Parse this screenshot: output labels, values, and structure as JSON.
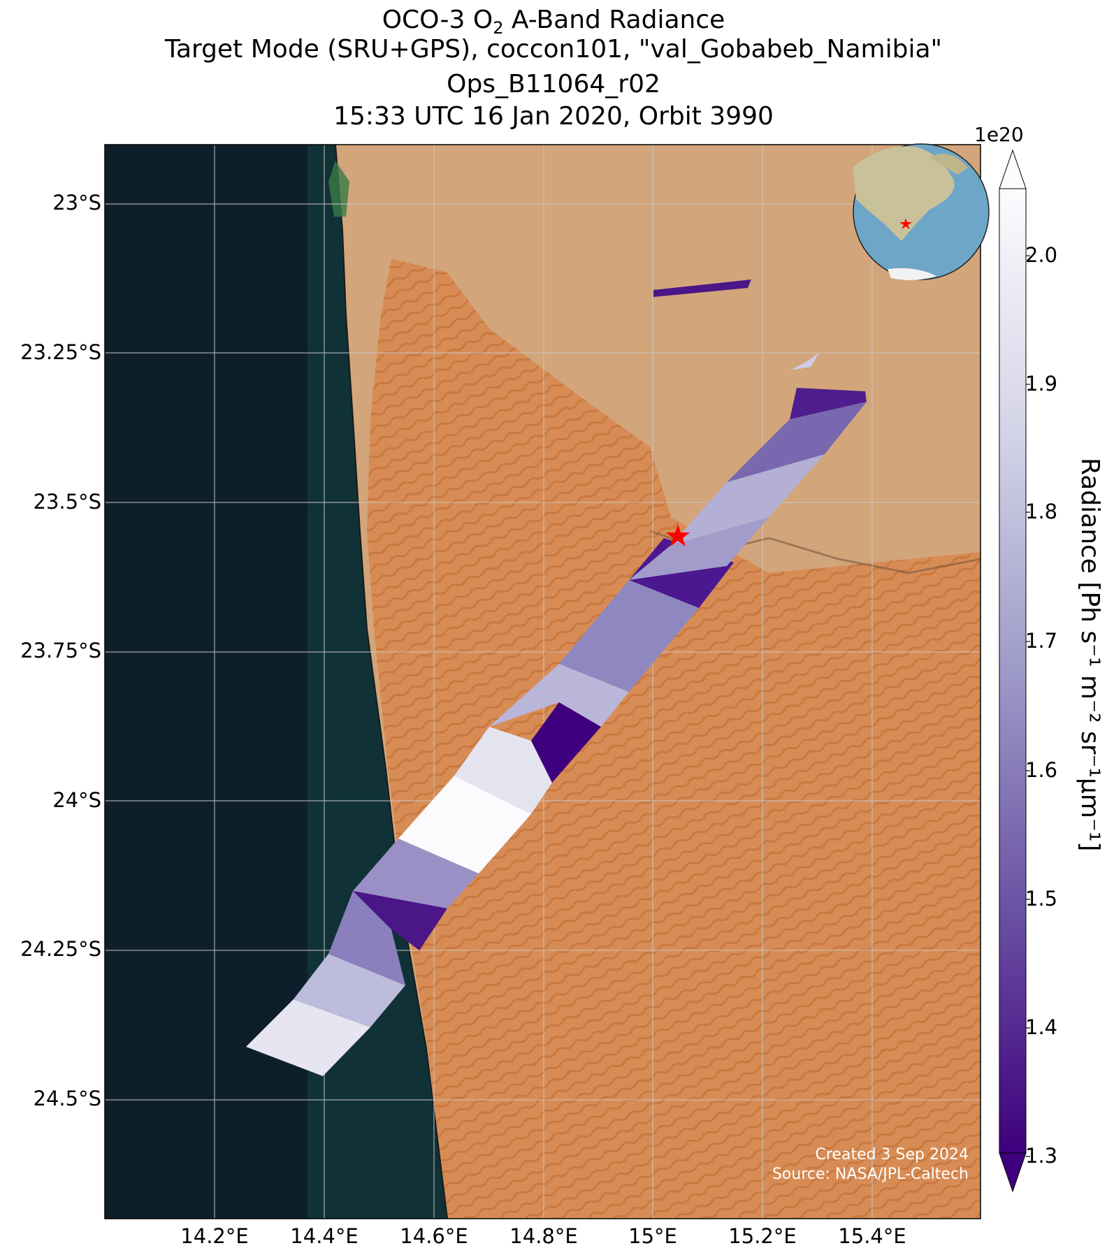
{
  "title": {
    "line1": "OCO-3 O",
    "line1_sub": "2",
    "line1_rest": " A-Band Radiance",
    "line2": "Target Mode (SRU+GPS), coccon101, \"val_Gobabeb_Namibia\"",
    "line3": "Ops_B11064_r02",
    "line4": "15:33 UTC 16 Jan 2020, Orbit 3990"
  },
  "map": {
    "lon_range": [
      14.0,
      15.6
    ],
    "lat_range": [
      -24.7,
      -22.9
    ],
    "lat_ticks": [
      "23°S",
      "23.25°S",
      "23.5°S",
      "23.75°S",
      "24°S",
      "24.25°S",
      "24.5°S"
    ],
    "lon_ticks": [
      "14.2°E",
      "14.4°E",
      "14.6°E",
      "14.8°E",
      "15°E",
      "15.2°E",
      "15.4°E"
    ],
    "target_marker": {
      "lon": 15.04,
      "lat": -23.56,
      "color": "#ff0000"
    },
    "ocean_color": "#0e1f2c",
    "desert_color": "#d9915a",
    "rock_color": "#d3a57a"
  },
  "colorbar": {
    "label": "Radiance [Ph s⁻¹ m⁻² sr⁻¹μm⁻¹]",
    "multiplier": "1e20",
    "range": [
      1.3,
      2.0
    ],
    "ticks": [
      "2.0",
      "1.9",
      "1.8",
      "1.7",
      "1.6",
      "1.5",
      "1.4",
      "1.3"
    ],
    "colormap": "Purples_r",
    "color_low": "#3f007d",
    "color_high": "#fcfbfd"
  },
  "credits": {
    "created": "Created 3 Sep 2024",
    "source": "Source: NASA/JPL-Caltech"
  },
  "swath": {
    "units": "degrees",
    "segments": [
      {
        "lat_start": -24.43,
        "lat_end": -24.2,
        "level": "light"
      },
      {
        "lat_start": -24.2,
        "lat_end": -24.1,
        "level": "dark"
      },
      {
        "lat_start": -24.1,
        "lat_end": -23.95,
        "level": "white"
      },
      {
        "lat_start": -23.95,
        "lat_end": -23.8,
        "level": "mixed"
      },
      {
        "lat_start": -23.8,
        "lat_end": -23.5,
        "level": "medium"
      },
      {
        "lat_start": -23.5,
        "lat_end": -23.27,
        "level": "dark"
      }
    ]
  }
}
